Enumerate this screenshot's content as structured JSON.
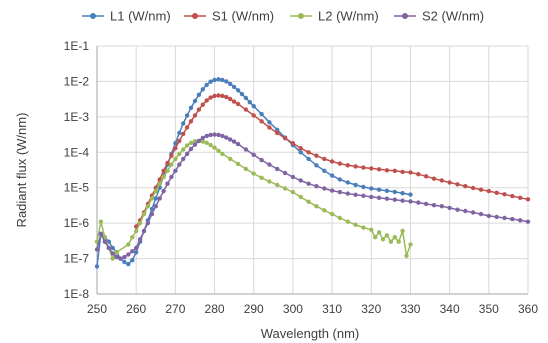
{
  "chart_data": {
    "type": "scatter",
    "title": "",
    "xlabel": "Wavelength (nm)",
    "ylabel": "Radiant flux (W/nm)",
    "xlim": [
      250,
      360
    ],
    "ylim": [
      1e-08,
      0.1
    ],
    "yscale": "log",
    "grid": true,
    "legend_position": "top",
    "x_ticks": [
      "250",
      "260",
      "270",
      "280",
      "290",
      "300",
      "310",
      "320",
      "330",
      "340",
      "350",
      "360"
    ],
    "y_ticks": [
      "1E-8",
      "1E-7",
      "1E-6",
      "1E-5",
      "1E-4",
      "1E-3",
      "1E-2",
      "1E-1"
    ],
    "series": [
      {
        "name": "L1 (W/nm)",
        "color": "#4a7ebb",
        "x": [
          250,
          251,
          252,
          253,
          254,
          255,
          256,
          257,
          258,
          259,
          260,
          261,
          262,
          263,
          264,
          265,
          266,
          267,
          268,
          269,
          270,
          271,
          272,
          273,
          274,
          275,
          276,
          277,
          278,
          279,
          280,
          281,
          282,
          283,
          284,
          285,
          286,
          287,
          288,
          289,
          290,
          292,
          294,
          296,
          298,
          300,
          302,
          304,
          306,
          308,
          310,
          312,
          314,
          316,
          318,
          320,
          322,
          324,
          326,
          328,
          330
        ],
        "y": [
          6e-08,
          5e-07,
          4e-07,
          3e-07,
          2e-07,
          1.5e-07,
          1e-07,
          8e-08,
          7e-08,
          9e-08,
          1.5e-07,
          3e-07,
          6e-07,
          1.2e-06,
          2.5e-06,
          5e-06,
          1e-05,
          2.2e-05,
          4.5e-05,
          9e-05,
          0.00018,
          0.00035,
          0.00065,
          0.0011,
          0.0018,
          0.0028,
          0.0042,
          0.006,
          0.008,
          0.0098,
          0.011,
          0.0115,
          0.011,
          0.01,
          0.0085,
          0.007,
          0.0056,
          0.0044,
          0.0034,
          0.0026,
          0.002,
          0.0012,
          0.0007,
          0.00043,
          0.00026,
          0.00016,
          0.0001,
          6.5e-05,
          4.3e-05,
          3e-05,
          2.2e-05,
          1.7e-05,
          1.4e-05,
          1.2e-05,
          1.05e-05,
          9.5e-06,
          8.8e-06,
          8.2e-06,
          7.6e-06,
          7e-06,
          6.4e-06
        ]
      },
      {
        "name": "S1 (W/nm)",
        "color": "#c0504d",
        "x": [
          260,
          261,
          262,
          263,
          264,
          265,
          266,
          267,
          268,
          269,
          270,
          271,
          272,
          273,
          274,
          275,
          276,
          277,
          278,
          279,
          280,
          281,
          282,
          283,
          284,
          285,
          286,
          288,
          290,
          292,
          294,
          296,
          298,
          300,
          302,
          304,
          306,
          308,
          310,
          312,
          314,
          316,
          318,
          320,
          322,
          324,
          326,
          328,
          330,
          332,
          334,
          336,
          338,
          340,
          342,
          344,
          346,
          348,
          350,
          352,
          354,
          356,
          358,
          360
        ],
        "y": [
          8e-07,
          1.2e-06,
          2e-06,
          3.5e-06,
          6e-06,
          1e-05,
          1.7e-05,
          3e-05,
          5e-05,
          8e-05,
          0.00013,
          0.00021,
          0.00033,
          0.0005,
          0.00075,
          0.0011,
          0.0016,
          0.0022,
          0.0029,
          0.0035,
          0.0039,
          0.004,
          0.0039,
          0.0036,
          0.0032,
          0.0027,
          0.0023,
          0.0016,
          0.0011,
          0.00075,
          0.0005,
          0.00035,
          0.00025,
          0.00018,
          0.00013,
          0.0001,
          8e-05,
          6.5e-05,
          5.5e-05,
          4.8e-05,
          4.3e-05,
          4e-05,
          3.7e-05,
          3.5e-05,
          3.3e-05,
          3.1e-05,
          3e-05,
          2.8e-05,
          2.7e-05,
          2.4e-05,
          2.1e-05,
          1.8e-05,
          1.6e-05,
          1.4e-05,
          1.25e-05,
          1.1e-05,
          9.8e-06,
          8.8e-06,
          8e-06,
          7.2e-06,
          6.5e-06,
          5.8e-06,
          5.2e-06,
          4.7e-06
        ]
      },
      {
        "name": "L2 (W/nm)",
        "color": "#9bbb59",
        "x": [
          250,
          251,
          252,
          253,
          254,
          255,
          258,
          259,
          260,
          261,
          262,
          263,
          264,
          265,
          266,
          267,
          268,
          269,
          270,
          271,
          272,
          273,
          274,
          275,
          276,
          277,
          278,
          279,
          280,
          281,
          282,
          284,
          286,
          288,
          290,
          292,
          294,
          296,
          298,
          300,
          302,
          304,
          306,
          308,
          310,
          312,
          314,
          316,
          318,
          320,
          321,
          322,
          323,
          324,
          325,
          326,
          327,
          328,
          329,
          330
        ],
        "y": [
          3e-07,
          1.1e-06,
          4e-07,
          2e-07,
          1e-07,
          1.5e-07,
          2.5e-07,
          4e-07,
          6e-07,
          1e-06,
          1.8e-06,
          3e-06,
          5e-06,
          8e-06,
          1.3e-05,
          2e-05,
          3e-05,
          4.5e-05,
          6.5e-05,
          9e-05,
          0.00012,
          0.000155,
          0.000185,
          0.000205,
          0.00021,
          0.0002,
          0.000185,
          0.00016,
          0.000135,
          0.00011,
          9e-05,
          6.5e-05,
          4.7e-05,
          3.4e-05,
          2.5e-05,
          1.9e-05,
          1.5e-05,
          1.2e-05,
          9.5e-06,
          7.5e-06,
          5.5e-06,
          4e-06,
          3e-06,
          2.3e-06,
          1.8e-06,
          1.4e-06,
          1.1e-06,
          9e-07,
          7.5e-07,
          6.5e-07,
          4e-07,
          5.5e-07,
          3.5e-07,
          4.5e-07,
          3e-07,
          4e-07,
          3e-07,
          6e-07,
          1.2e-07,
          2.5e-07
        ]
      },
      {
        "name": "S2 (W/nm)",
        "color": "#8064a2",
        "x": [
          250,
          251,
          252,
          253,
          254,
          255,
          256,
          257,
          258,
          259,
          260,
          261,
          262,
          263,
          264,
          265,
          266,
          267,
          268,
          269,
          270,
          271,
          272,
          273,
          274,
          275,
          276,
          277,
          278,
          279,
          280,
          281,
          282,
          283,
          284,
          285,
          286,
          288,
          290,
          292,
          294,
          296,
          298,
          300,
          302,
          304,
          306,
          308,
          310,
          312,
          314,
          316,
          318,
          320,
          322,
          324,
          326,
          328,
          330,
          332,
          334,
          336,
          338,
          340,
          342,
          344,
          346,
          348,
          350,
          352,
          354,
          356,
          358,
          360
        ],
        "y": [
          1.8e-07,
          5e-07,
          3e-07,
          2e-07,
          1.4e-07,
          1.1e-07,
          1e-07,
          1.1e-07,
          1.3e-07,
          1.6e-07,
          2e-07,
          3.5e-07,
          6e-07,
          1e-06,
          1.8e-06,
          3e-06,
          5e-06,
          8e-06,
          1.3e-05,
          2e-05,
          3e-05,
          4.5e-05,
          6.5e-05,
          9e-05,
          0.000125,
          0.000165,
          0.00021,
          0.000255,
          0.00029,
          0.00031,
          0.000315,
          0.00031,
          0.00029,
          0.00026,
          0.00023,
          0.0002,
          0.00017,
          0.00012,
          8.5e-05,
          6e-05,
          4.5e-05,
          3.4e-05,
          2.6e-05,
          2e-05,
          1.6e-05,
          1.3e-05,
          1.1e-05,
          9.5e-06,
          8.3e-06,
          7.5e-06,
          6.8e-06,
          6.3e-06,
          5.9e-06,
          5.5e-06,
          5.2e-06,
          4.9e-06,
          4.6e-06,
          4.3e-06,
          4.1e-06,
          3.8e-06,
          3.5e-06,
          3.2e-06,
          3e-06,
          2.7e-06,
          2.4e-06,
          2.2e-06,
          2e-06,
          1.8e-06,
          1.6e-06,
          1.5e-06,
          1.4e-06,
          1.3e-06,
          1.2e-06,
          1.1e-06
        ]
      }
    ]
  }
}
